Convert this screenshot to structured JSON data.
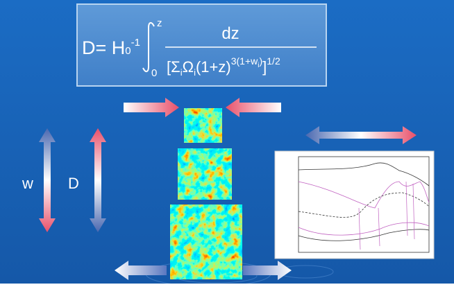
{
  "formula": {
    "lhs": "D= H",
    "lhs_sub": "0",
    "lhs_sup": "-1",
    "upper_limit": "z",
    "lower_limit": "0",
    "numerator": "dz",
    "denominator": {
      "open": "[Σ",
      "sub1": "i",
      "omega": "Ω",
      "sub2": "i",
      "base": "(1+z)",
      "exponent": "3(1+w",
      "exp_sub": "i",
      "exp_close": ")",
      "close": "]",
      "power": "1/2"
    }
  },
  "labels": {
    "w": "w",
    "d": "D"
  }
}
